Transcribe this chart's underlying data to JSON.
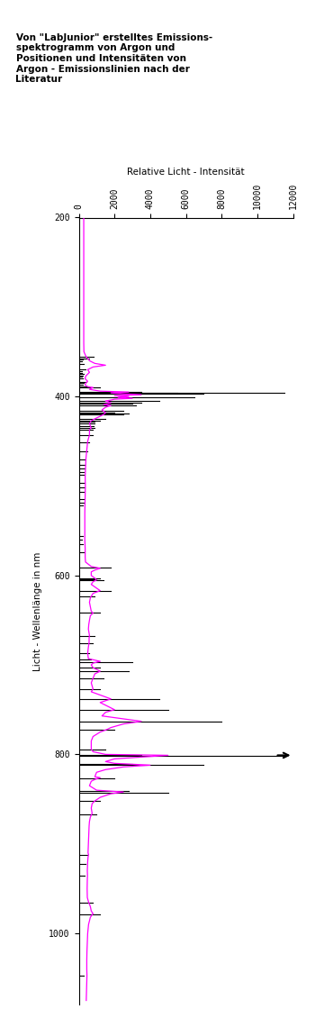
{
  "title": "Von \"LabJunior\" erstelltes Emissions-\nspektrogramm von Argon und\nPositionen und Intensitäten von\nArgon - Emissionslinien nach der\nLiteratur",
  "xlabel": "Licht - Wellenlänge in nm",
  "ylabel": "Relative Licht - Intensität",
  "x_ticks": [
    0,
    2000,
    4000,
    6000,
    8000,
    10000,
    12000
  ],
  "y_ticks": [
    200,
    400,
    600,
    800,
    1000
  ],
  "ylim": [
    200,
    1080
  ],
  "xlim": [
    0,
    12000
  ],
  "background_color": "#ffffff",
  "line_color": "#ff00ff",
  "bar_color": "#000000",
  "argon_lines": [
    {
      "wavelength": 355.4,
      "intensity": 850
    },
    {
      "wavelength": 357.7,
      "intensity": 600
    },
    {
      "wavelength": 358.8,
      "intensity": 250
    },
    {
      "wavelength": 360.7,
      "intensity": 200
    },
    {
      "wavelength": 363.8,
      "intensity": 300
    },
    {
      "wavelength": 370.1,
      "intensity": 400
    },
    {
      "wavelength": 372.0,
      "intensity": 200
    },
    {
      "wavelength": 373.6,
      "intensity": 200
    },
    {
      "wavelength": 375.0,
      "intensity": 300
    },
    {
      "wavelength": 376.5,
      "intensity": 250
    },
    {
      "wavelength": 378.1,
      "intensity": 200
    },
    {
      "wavelength": 380.0,
      "intensity": 250
    },
    {
      "wavelength": 383.5,
      "intensity": 450
    },
    {
      "wavelength": 385.2,
      "intensity": 300
    },
    {
      "wavelength": 387.1,
      "intensity": 250
    },
    {
      "wavelength": 388.9,
      "intensity": 500
    },
    {
      "wavelength": 390.0,
      "intensity": 1200
    },
    {
      "wavelength": 394.7,
      "intensity": 3500
    },
    {
      "wavelength": 395.4,
      "intensity": 11500
    },
    {
      "wavelength": 396.2,
      "intensity": 5500
    },
    {
      "wavelength": 397.0,
      "intensity": 7000
    },
    {
      "wavelength": 400.8,
      "intensity": 6500
    },
    {
      "wavelength": 404.4,
      "intensity": 4500
    },
    {
      "wavelength": 407.2,
      "intensity": 3500
    },
    {
      "wavelength": 408.0,
      "intensity": 3000
    },
    {
      "wavelength": 410.0,
      "intensity": 3200
    },
    {
      "wavelength": 415.9,
      "intensity": 2500
    },
    {
      "wavelength": 418.2,
      "intensity": 2000
    },
    {
      "wavelength": 419.1,
      "intensity": 2800
    },
    {
      "wavelength": 420.0,
      "intensity": 2500
    },
    {
      "wavelength": 425.1,
      "intensity": 1500
    },
    {
      "wavelength": 426.6,
      "intensity": 1200
    },
    {
      "wavelength": 427.8,
      "intensity": 900
    },
    {
      "wavelength": 430.0,
      "intensity": 900
    },
    {
      "wavelength": 433.1,
      "intensity": 850
    },
    {
      "wavelength": 434.8,
      "intensity": 900
    },
    {
      "wavelength": 437.1,
      "intensity": 800
    },
    {
      "wavelength": 443.2,
      "intensity": 800
    },
    {
      "wavelength": 451.1,
      "intensity": 600
    },
    {
      "wavelength": 460.9,
      "intensity": 500
    },
    {
      "wavelength": 470.2,
      "intensity": 400
    },
    {
      "wavelength": 476.5,
      "intensity": 350
    },
    {
      "wavelength": 480.6,
      "intensity": 350
    },
    {
      "wavelength": 484.8,
      "intensity": 300
    },
    {
      "wavelength": 487.0,
      "intensity": 300
    },
    {
      "wavelength": 496.5,
      "intensity": 350
    },
    {
      "wavelength": 501.7,
      "intensity": 350
    },
    {
      "wavelength": 506.2,
      "intensity": 300
    },
    {
      "wavelength": 514.5,
      "intensity": 300
    },
    {
      "wavelength": 518.8,
      "intensity": 280
    },
    {
      "wavelength": 522.1,
      "intensity": 250
    },
    {
      "wavelength": 555.5,
      "intensity": 250
    },
    {
      "wavelength": 560.0,
      "intensity": 200
    },
    {
      "wavelength": 565.1,
      "intensity": 250
    },
    {
      "wavelength": 573.9,
      "intensity": 300
    },
    {
      "wavelength": 591.2,
      "intensity": 1800
    },
    {
      "wavelength": 603.2,
      "intensity": 1200
    },
    {
      "wavelength": 604.3,
      "intensity": 1000
    },
    {
      "wavelength": 605.5,
      "intensity": 1400
    },
    {
      "wavelength": 617.2,
      "intensity": 1800
    },
    {
      "wavelength": 623.1,
      "intensity": 900
    },
    {
      "wavelength": 641.6,
      "intensity": 1200
    },
    {
      "wavelength": 667.7,
      "intensity": 900
    },
    {
      "wavelength": 675.3,
      "intensity": 800
    },
    {
      "wavelength": 687.1,
      "intensity": 600
    },
    {
      "wavelength": 693.8,
      "intensity": 700
    },
    {
      "wavelength": 696.5,
      "intensity": 3000
    },
    {
      "wavelength": 703.0,
      "intensity": 1200
    },
    {
      "wavelength": 706.7,
      "intensity": 2800
    },
    {
      "wavelength": 714.7,
      "intensity": 1400
    },
    {
      "wavelength": 727.3,
      "intensity": 1200
    },
    {
      "wavelength": 738.4,
      "intensity": 4500
    },
    {
      "wavelength": 750.4,
      "intensity": 5000
    },
    {
      "wavelength": 763.5,
      "intensity": 8000
    },
    {
      "wavelength": 772.4,
      "intensity": 2000
    },
    {
      "wavelength": 794.8,
      "intensity": 1500
    },
    {
      "wavelength": 800.6,
      "intensity": 3500
    },
    {
      "wavelength": 801.5,
      "intensity": 11500
    },
    {
      "wavelength": 810.4,
      "intensity": 3000
    },
    {
      "wavelength": 811.5,
      "intensity": 7000
    },
    {
      "wavelength": 826.5,
      "intensity": 2000
    },
    {
      "wavelength": 840.8,
      "intensity": 2800
    },
    {
      "wavelength": 842.5,
      "intensity": 5000
    },
    {
      "wavelength": 852.1,
      "intensity": 1200
    },
    {
      "wavelength": 866.8,
      "intensity": 1000
    },
    {
      "wavelength": 912.3,
      "intensity": 500
    },
    {
      "wavelength": 922.5,
      "intensity": 400
    },
    {
      "wavelength": 935.4,
      "intensity": 350
    },
    {
      "wavelength": 965.8,
      "intensity": 800
    },
    {
      "wavelength": 978.5,
      "intensity": 1200
    },
    {
      "wavelength": 1047.0,
      "intensity": 300
    }
  ],
  "spectrum_points": [
    [
      200,
      280
    ],
    [
      300,
      280
    ],
    [
      340,
      280
    ],
    [
      350,
      290
    ],
    [
      355,
      400
    ],
    [
      360,
      600
    ],
    [
      363,
      900
    ],
    [
      365,
      1500
    ],
    [
      367,
      800
    ],
    [
      370,
      500
    ],
    [
      373,
      600
    ],
    [
      375,
      500
    ],
    [
      377,
      400
    ],
    [
      380,
      350
    ],
    [
      383,
      500
    ],
    [
      385,
      400
    ],
    [
      387,
      350
    ],
    [
      389,
      500
    ],
    [
      390,
      800
    ],
    [
      392,
      600
    ],
    [
      394,
      1200
    ],
    [
      395,
      2800
    ],
    [
      396,
      1800
    ],
    [
      397,
      2500
    ],
    [
      398,
      3500
    ],
    [
      399,
      2000
    ],
    [
      400,
      2800
    ],
    [
      401,
      2200
    ],
    [
      402,
      3000
    ],
    [
      403,
      2000
    ],
    [
      404,
      1800
    ],
    [
      405,
      1500
    ],
    [
      407,
      1800
    ],
    [
      408,
      1600
    ],
    [
      409,
      1400
    ],
    [
      410,
      1800
    ],
    [
      412,
      1500
    ],
    [
      415,
      1300
    ],
    [
      418,
      1500
    ],
    [
      420,
      1400
    ],
    [
      422,
      1200
    ],
    [
      425,
      900
    ],
    [
      427,
      700
    ],
    [
      430,
      600
    ],
    [
      433,
      650
    ],
    [
      435,
      700
    ],
    [
      437,
      600
    ],
    [
      440,
      600
    ],
    [
      443,
      600
    ],
    [
      450,
      500
    ],
    [
      460,
      450
    ],
    [
      470,
      400
    ],
    [
      480,
      380
    ],
    [
      490,
      360
    ],
    [
      500,
      370
    ],
    [
      510,
      360
    ],
    [
      520,
      350
    ],
    [
      530,
      340
    ],
    [
      540,
      340
    ],
    [
      550,
      340
    ],
    [
      560,
      340
    ],
    [
      570,
      360
    ],
    [
      580,
      360
    ],
    [
      585,
      380
    ],
    [
      590,
      700
    ],
    [
      592,
      1200
    ],
    [
      594,
      900
    ],
    [
      596,
      700
    ],
    [
      600,
      700
    ],
    [
      603,
      900
    ],
    [
      605,
      1000
    ],
    [
      607,
      800
    ],
    [
      610,
      700
    ],
    [
      617,
      1200
    ],
    [
      620,
      800
    ],
    [
      625,
      650
    ],
    [
      630,
      600
    ],
    [
      640,
      700
    ],
    [
      642,
      800
    ],
    [
      645,
      650
    ],
    [
      650,
      600
    ],
    [
      655,
      560
    ],
    [
      660,
      540
    ],
    [
      667,
      600
    ],
    [
      670,
      580
    ],
    [
      675,
      580
    ],
    [
      680,
      540
    ],
    [
      687,
      500
    ],
    [
      690,
      520
    ],
    [
      693,
      540
    ],
    [
      696,
      1200
    ],
    [
      698,
      800
    ],
    [
      700,
      700
    ],
    [
      703,
      800
    ],
    [
      707,
      1200
    ],
    [
      710,
      900
    ],
    [
      715,
      800
    ],
    [
      720,
      700
    ],
    [
      727,
      800
    ],
    [
      730,
      700
    ],
    [
      738,
      1800
    ],
    [
      742,
      1200
    ],
    [
      750,
      2000
    ],
    [
      753,
      1500
    ],
    [
      757,
      1300
    ],
    [
      763,
      3500
    ],
    [
      766,
      2500
    ],
    [
      770,
      1800
    ],
    [
      772,
      1600
    ],
    [
      775,
      1200
    ],
    [
      780,
      800
    ],
    [
      785,
      700
    ],
    [
      794,
      700
    ],
    [
      797,
      800
    ],
    [
      800,
      1500
    ],
    [
      801,
      5000
    ],
    [
      803,
      3500
    ],
    [
      805,
      2000
    ],
    [
      808,
      1500
    ],
    [
      810,
      2000
    ],
    [
      812,
      4000
    ],
    [
      814,
      2500
    ],
    [
      817,
      1500
    ],
    [
      820,
      1000
    ],
    [
      825,
      900
    ],
    [
      826,
      1200
    ],
    [
      828,
      900
    ],
    [
      830,
      700
    ],
    [
      835,
      600
    ],
    [
      840,
      1000
    ],
    [
      842,
      2500
    ],
    [
      844,
      1800
    ],
    [
      848,
      1200
    ],
    [
      852,
      900
    ],
    [
      855,
      750
    ],
    [
      860,
      700
    ],
    [
      866,
      750
    ],
    [
      870,
      650
    ],
    [
      875,
      600
    ],
    [
      880,
      580
    ],
    [
      890,
      560
    ],
    [
      900,
      540
    ],
    [
      910,
      520
    ],
    [
      912,
      550
    ],
    [
      915,
      520
    ],
    [
      920,
      500
    ],
    [
      925,
      490
    ],
    [
      930,
      480
    ],
    [
      935,
      490
    ],
    [
      940,
      480
    ],
    [
      950,
      470
    ],
    [
      960,
      480
    ],
    [
      965,
      550
    ],
    [
      970,
      650
    ],
    [
      975,
      700
    ],
    [
      978,
      800
    ],
    [
      982,
      650
    ],
    [
      990,
      550
    ],
    [
      1000,
      500
    ],
    [
      1010,
      480
    ],
    [
      1020,
      460
    ],
    [
      1030,
      450
    ],
    [
      1040,
      450
    ],
    [
      1047,
      460
    ],
    [
      1055,
      450
    ],
    [
      1060,
      440
    ],
    [
      1070,
      430
    ],
    [
      1075,
      420
    ]
  ]
}
